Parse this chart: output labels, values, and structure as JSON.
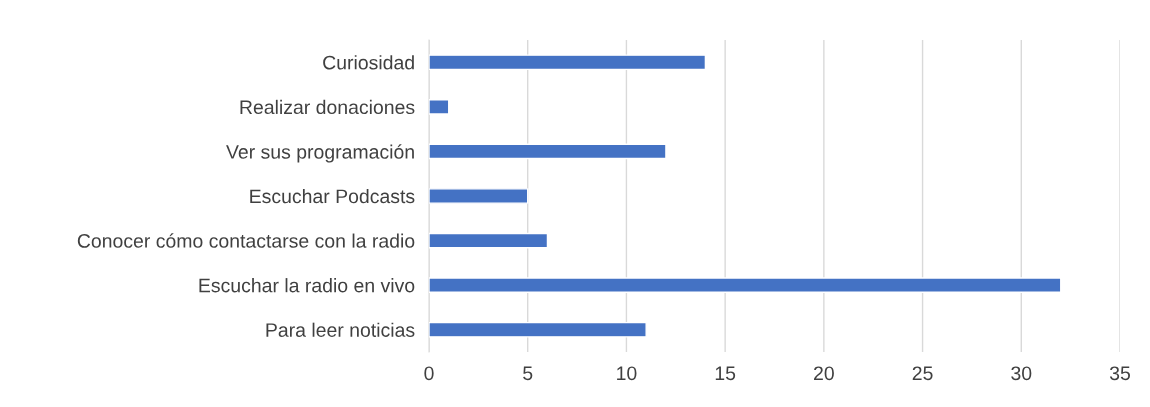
{
  "chart_data": {
    "type": "bar",
    "orientation": "horizontal",
    "categories": [
      "Curiosidad",
      "Realizar donaciones",
      "Ver sus programación",
      "Escuchar Podcasts",
      "Conocer cómo contactarse con la radio",
      "Escuchar la radio en vivo",
      "Para leer noticias"
    ],
    "values": [
      14,
      1,
      12,
      5,
      6,
      32,
      11
    ],
    "color": "#4472c4",
    "xlim": [
      0,
      35
    ],
    "xticks": [
      0,
      5,
      10,
      15,
      20,
      25,
      30,
      35
    ],
    "grid": "x"
  }
}
